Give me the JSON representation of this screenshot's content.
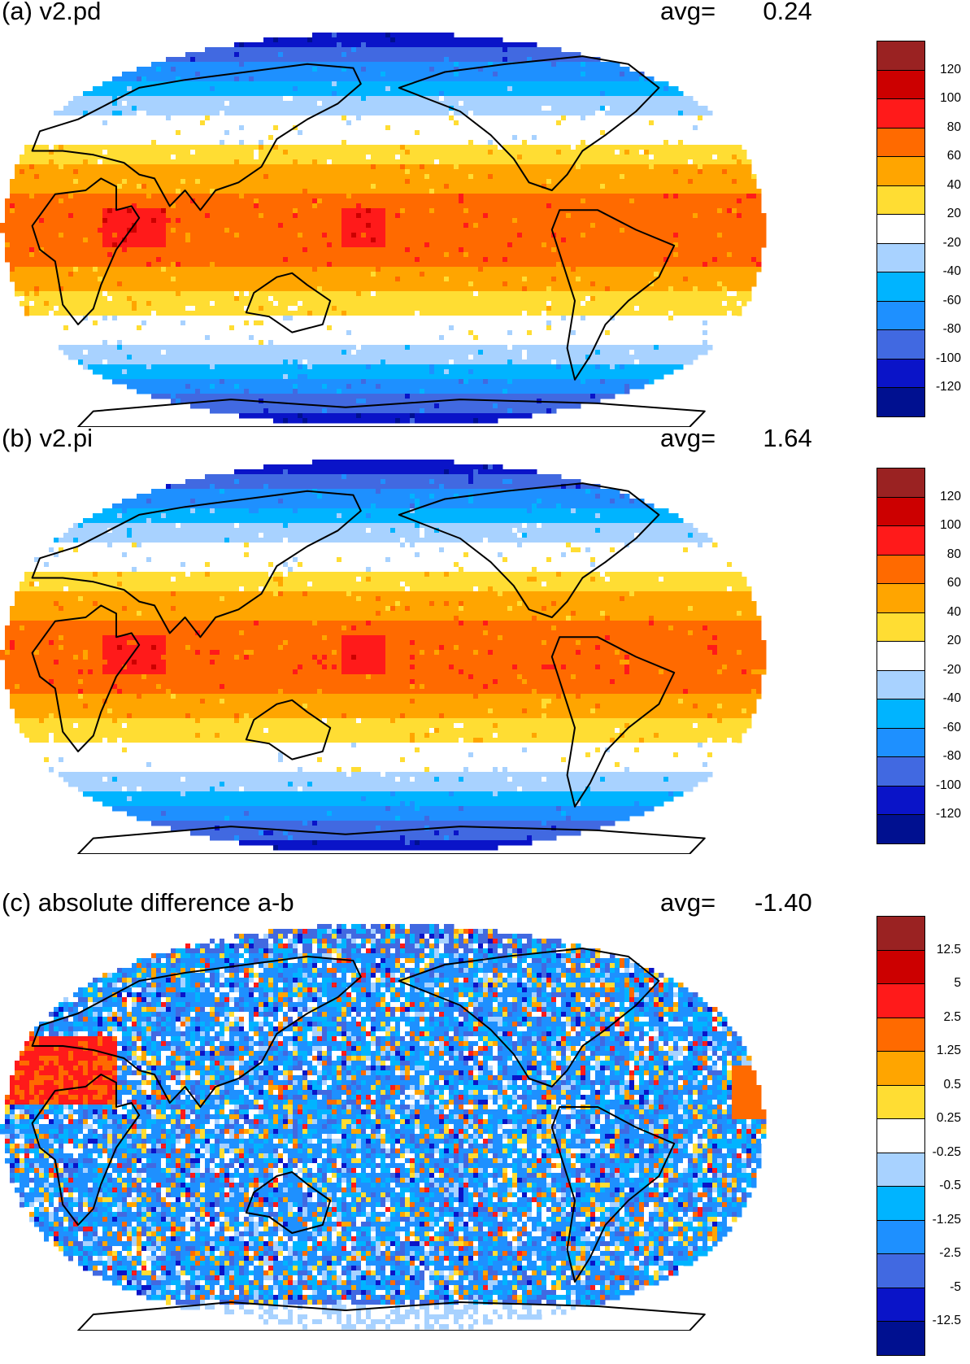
{
  "panels": [
    {
      "id": "a",
      "title": "(a) v2.pd",
      "avg_label": "avg=",
      "avg_value": "0.24",
      "colorbar_labels": [
        "120",
        "100",
        "80",
        "60",
        "40",
        "20",
        "-20",
        "-40",
        "-60",
        "-80",
        "-100",
        "-120"
      ],
      "pattern": "smooth"
    },
    {
      "id": "b",
      "title": "(b) v2.pi",
      "avg_label": "avg=",
      "avg_value": "1.64",
      "colorbar_labels": [
        "120",
        "100",
        "80",
        "60",
        "40",
        "20",
        "-20",
        "-40",
        "-60",
        "-80",
        "-100",
        "-120"
      ],
      "pattern": "smooth"
    },
    {
      "id": "c",
      "title": "(c) absolute difference a-b",
      "avg_label": "avg=",
      "avg_value": "-1.40",
      "colorbar_labels": [
        "12.5",
        "5",
        "2.5",
        "1.25",
        "0.5",
        "0.25",
        "-0.25",
        "-0.5",
        "-1.25",
        "-2.5",
        "-5",
        "-12.5"
      ],
      "pattern": "noisy"
    }
  ],
  "colors": {
    "palette": [
      "#9a2222",
      "#cc0000",
      "#ff1a1a",
      "#ff6a00",
      "#ffa500",
      "#ffdd33",
      "#ffffff",
      "#a8d2ff",
      "#00b4ff",
      "#1e90ff",
      "#4169e1",
      "#0a14c8",
      "#001090"
    ],
    "coastline": "#000000"
  }
}
